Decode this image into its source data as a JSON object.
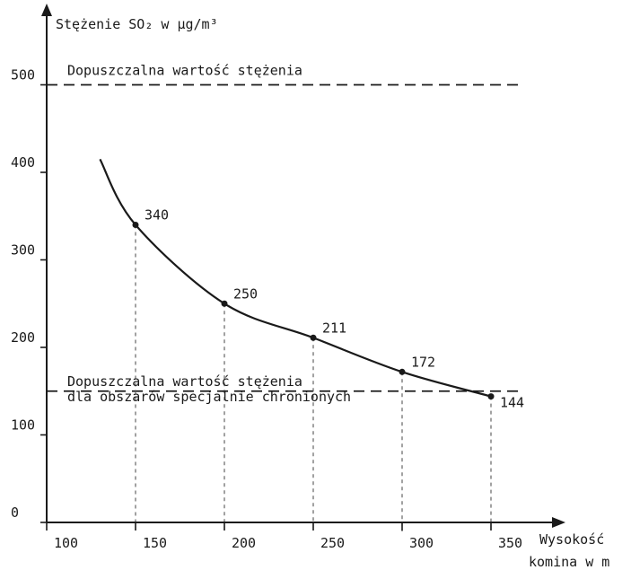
{
  "chart_data": {
    "type": "line",
    "ylabel": "Stężenie SO₂ w μg/m³",
    "xlabel_line1": "Wysokość",
    "xlabel_line2": "komina w m",
    "x_ticks": [
      100,
      150,
      200,
      250,
      300,
      350
    ],
    "y_ticks": [
      0,
      100,
      200,
      300,
      400,
      500
    ],
    "xlim": [
      90,
      375
    ],
    "ylim": [
      0,
      530
    ],
    "series": [
      {
        "points": [
          {
            "x": 150,
            "y": 340,
            "label": "340"
          },
          {
            "x": 200,
            "y": 250,
            "label": "250"
          },
          {
            "x": 250,
            "y": 211,
            "label": "211"
          },
          {
            "x": 300,
            "y": 172,
            "label": "172"
          },
          {
            "x": 350,
            "y": 144,
            "label": "144"
          }
        ],
        "curve_start": {
          "x": 130,
          "y": 415
        }
      }
    ],
    "reference_lines": [
      {
        "y": 500,
        "lines": [
          "Dopuszczalna wartość stężenia"
        ]
      },
      {
        "y": 150,
        "lines": [
          "Dopuszczalna wartość stężenia",
          "dla obszarów specjalnie chronionych"
        ]
      }
    ],
    "color": "#1a1a1a"
  }
}
